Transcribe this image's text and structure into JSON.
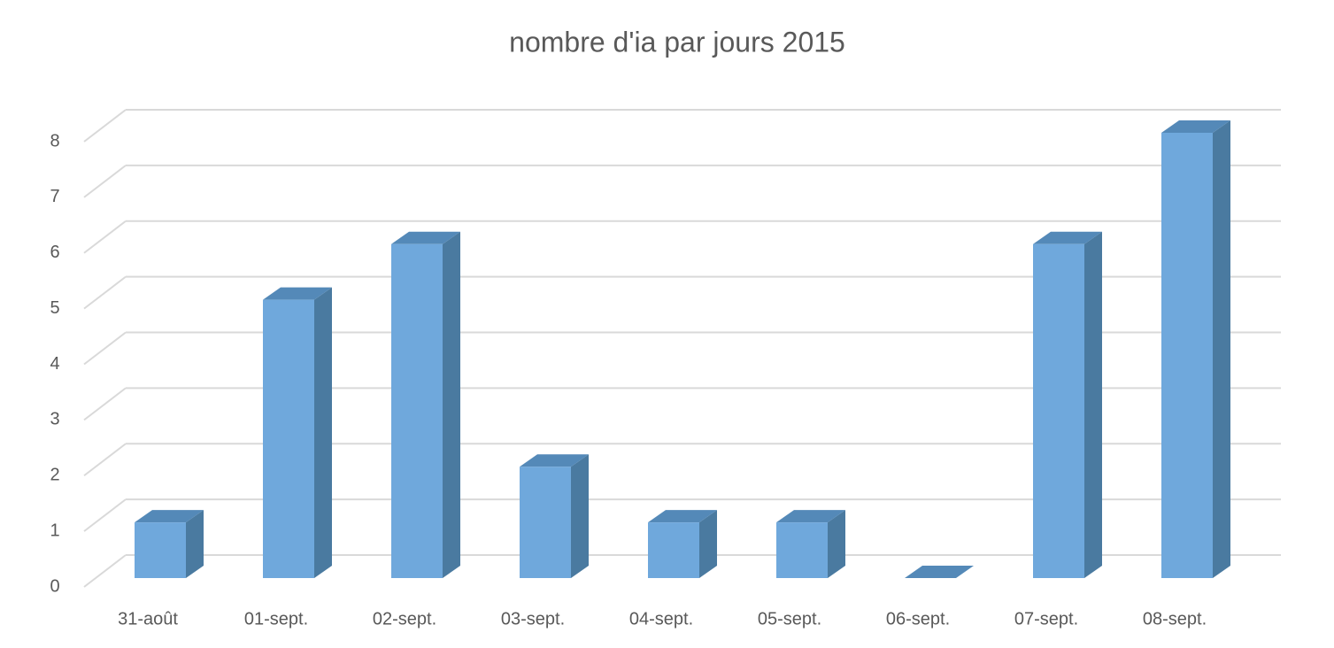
{
  "chart_data": {
    "type": "bar",
    "title": "nombre d'ia par jours 2015",
    "categories": [
      "31-août",
      "01-sept.",
      "02-sept.",
      "03-sept.",
      "04-sept.",
      "05-sept.",
      "06-sept.",
      "07-sept.",
      "08-sept."
    ],
    "values": [
      1,
      5,
      6,
      2,
      1,
      1,
      0,
      6,
      8
    ],
    "color": "#6fa8dc",
    "ylim": [
      0,
      8
    ],
    "yticks": [
      0,
      1,
      2,
      3,
      4,
      5,
      6,
      7,
      8
    ],
    "grid": true
  }
}
